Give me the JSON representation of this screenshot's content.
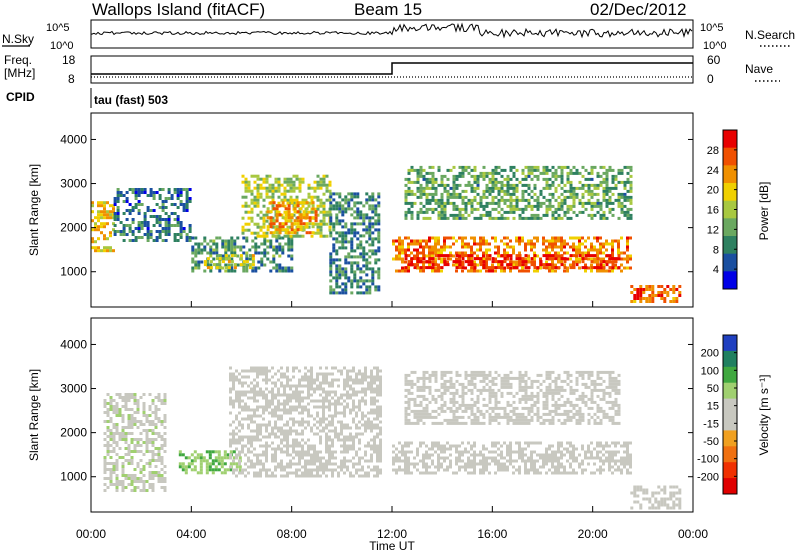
{
  "header": {
    "title": "Wallops Island (fitACF)",
    "beam": "Beam 15",
    "date": "02/Dec/2012"
  },
  "top_panels": {
    "nsky_label": "N.Sky",
    "nsky_ticks": [
      "10^5",
      "10^0"
    ],
    "nsearch_label": "N.Search",
    "nsearch_ticks": [
      "10^5",
      "10^0"
    ],
    "freq_label": "Freq.",
    "freq_unit": "[MHz]",
    "freq_ticks": [
      "18",
      "8"
    ],
    "nave_label": "Nave",
    "nave_ticks": [
      "60",
      "0"
    ],
    "cpid_label": "CPID",
    "cpid_text": "tau (fast) 503"
  },
  "colors": {
    "power_scale": [
      "#0000e6",
      "#1a4fa0",
      "#2e8060",
      "#6aa860",
      "#a8c840",
      "#f0d000",
      "#f09000",
      "#f05000",
      "#e80000"
    ],
    "velocity_scale": [
      "#2040c0",
      "#208060",
      "#40a840",
      "#a0d070",
      "#c8c8c0",
      "#c8c8c0",
      "#f0a020",
      "#f07010",
      "#f03000",
      "#e00000"
    ]
  },
  "chart_data": [
    {
      "type": "heatmap",
      "title": "",
      "xlabel": "Time UT",
      "ylabel": "Slant Range [km]",
      "x_tick_labels": [
        "00:00",
        "04:00",
        "08:00",
        "12:00",
        "16:00",
        "20:00",
        "00:00"
      ],
      "y_tick_labels": [
        "1000",
        "2000",
        "3000",
        "4000"
      ],
      "xlim": [
        0,
        24
      ],
      "ylim": [
        200,
        4600
      ],
      "colorbar": {
        "label": "Power [dB]",
        "ticks": [
          "4",
          "8",
          "12",
          "16",
          "20",
          "24",
          "28"
        ],
        "range": [
          0,
          32
        ]
      },
      "regions": [
        {
          "t": [
            0.0,
            0.9
          ],
          "r": [
            1500,
            2600
          ],
          "value": 20
        },
        {
          "t": [
            0.9,
            4.0
          ],
          "r": [
            1700,
            2900
          ],
          "value": 8
        },
        {
          "t": [
            4.0,
            8.0
          ],
          "r": [
            1000,
            1800
          ],
          "value": 10
        },
        {
          "t": [
            4.5,
            6.5
          ],
          "r": [
            1100,
            1400
          ],
          "value": 18
        },
        {
          "t": [
            6.0,
            9.5
          ],
          "r": [
            1800,
            3200
          ],
          "value": 16
        },
        {
          "t": [
            7.0,
            9.0
          ],
          "r": [
            1900,
            2600
          ],
          "value": 22
        },
        {
          "t": [
            9.5,
            11.5
          ],
          "r": [
            500,
            2800
          ],
          "value": 9
        },
        {
          "t": [
            12.0,
            21.5
          ],
          "r": [
            1000,
            1800
          ],
          "value": 24
        },
        {
          "t": [
            12.5,
            21.0
          ],
          "r": [
            1100,
            1400
          ],
          "value": 30
        },
        {
          "t": [
            12.5,
            21.5
          ],
          "r": [
            2200,
            3400
          ],
          "value": 12
        },
        {
          "t": [
            21.5,
            23.5
          ],
          "r": [
            300,
            700
          ],
          "value": 26
        }
      ]
    },
    {
      "type": "heatmap",
      "title": "",
      "xlabel": "Time UT",
      "ylabel": "Slant Range [km]",
      "x_tick_labels": [
        "00:00",
        "04:00",
        "08:00",
        "12:00",
        "16:00",
        "20:00",
        "00:00"
      ],
      "y_tick_labels": [
        "1000",
        "2000",
        "3000",
        "4000"
      ],
      "xlim": [
        0,
        24
      ],
      "ylim": [
        200,
        4600
      ],
      "colorbar": {
        "label": "Velocity [m s⁻¹]",
        "ticks": [
          "200",
          "100",
          "50",
          "15",
          "-15",
          "-50",
          "-100",
          "-200"
        ],
        "range": [
          -250,
          250
        ]
      },
      "regions": [
        {
          "t": [
            0.5,
            3.0
          ],
          "r": [
            700,
            2900
          ],
          "value": 30
        },
        {
          "t": [
            3.5,
            6.0
          ],
          "r": [
            1100,
            1600
          ],
          "value": 90
        },
        {
          "t": [
            5.5,
            11.5
          ],
          "r": [
            1000,
            3500
          ],
          "value": 0
        },
        {
          "t": [
            12.0,
            21.5
          ],
          "r": [
            1100,
            1800
          ],
          "value": 0
        },
        {
          "t": [
            12.5,
            21.0
          ],
          "r": [
            2200,
            3400
          ],
          "value": 0
        },
        {
          "t": [
            21.5,
            23.5
          ],
          "r": [
            300,
            800
          ],
          "value": 0
        }
      ]
    }
  ]
}
